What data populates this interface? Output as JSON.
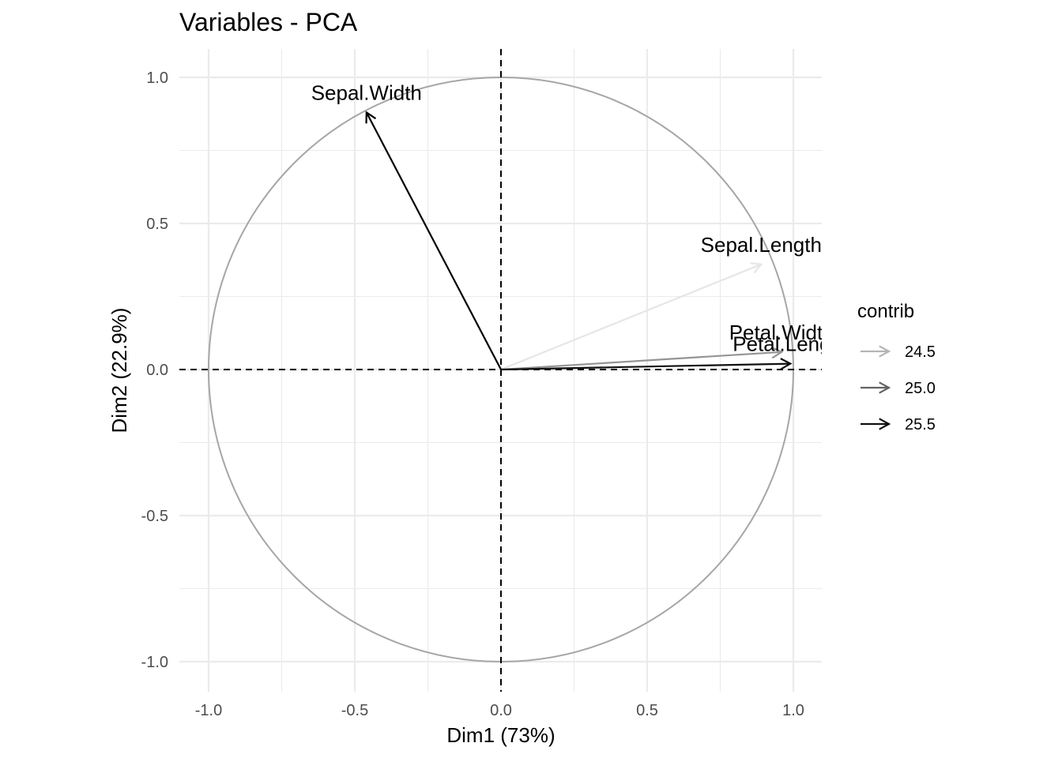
{
  "chart_data": {
    "type": "scatter",
    "subtype": "pca-variables-correlation-circle",
    "title": "Variables - PCA",
    "xlabel": "Dim1 (73%)",
    "ylabel": "Dim2 (22.9%)",
    "xlim": [
      -1.0,
      1.1
    ],
    "ylim": [
      -1.1,
      1.1
    ],
    "x_ticks": [
      -1.0,
      -0.5,
      0.0,
      0.5,
      1.0
    ],
    "x_tick_labels": [
      "-1.0",
      "-0.5",
      "0.0",
      "0.5",
      "1.0"
    ],
    "y_ticks": [
      -1.0,
      -0.5,
      0.0,
      0.5,
      1.0
    ],
    "y_tick_labels": [
      "-1.0",
      "-0.5",
      "0.0",
      "0.5",
      "1.0"
    ],
    "grid": true,
    "unit_circle": true,
    "reference_lines": {
      "x": 0,
      "y": 0,
      "style": "dashed"
    },
    "variables": [
      {
        "name": "Sepal.Width",
        "label": "Sepal.Width",
        "x": -0.46,
        "y": 0.88,
        "contrib": 25.6
      },
      {
        "name": "Sepal.Length",
        "label": "Sepal.Lengtl",
        "x": 0.89,
        "y": 0.36,
        "contrib": 24.2
      },
      {
        "name": "Petal.Width",
        "label": "Petal.Wid",
        "x": 0.96,
        "y": 0.06,
        "contrib": 24.7
      },
      {
        "name": "Petal.Length",
        "label": "Petal.Len",
        "x": 0.99,
        "y": 0.02,
        "contrib": 25.5
      }
    ],
    "legend": {
      "title": "contrib",
      "position": "right",
      "items": [
        {
          "label": "24.5",
          "value": 24.5
        },
        {
          "label": "25.0",
          "value": 25.0
        },
        {
          "label": "25.5",
          "value": 25.5
        }
      ]
    },
    "colors": {
      "circle": "#a6a6a6",
      "grid": "#ebebeb",
      "ref_line": "#000000",
      "contrib_low": "#e6e6e6",
      "contrib_high": "#000000"
    }
  }
}
